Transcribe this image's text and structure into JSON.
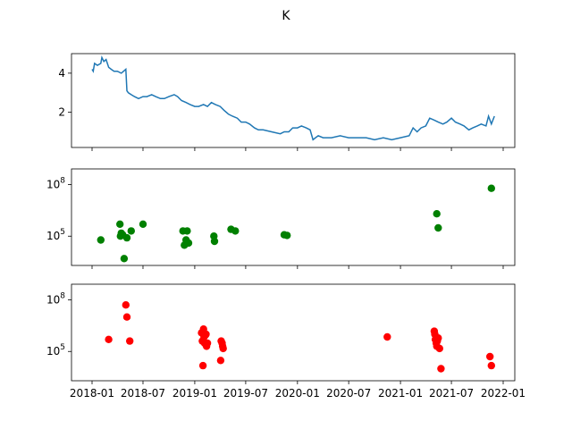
{
  "figure": {
    "title": "K"
  },
  "chart_data": [
    {
      "type": "line",
      "panel": "top",
      "title": "K",
      "xlabel": "",
      "ylabel": "",
      "x_type": "date",
      "xlim": [
        "2018-01-01",
        "2022-01-01"
      ],
      "ylim": [
        0.2,
        5.0
      ],
      "yticks": [
        2,
        4
      ],
      "color": "#1f77b4",
      "series": [
        {
          "x": [
            "2018-01-01",
            "2018-01-05",
            "2018-01-10",
            "2018-01-20",
            "2018-02-01",
            "2018-02-05",
            "2018-02-12",
            "2018-02-20",
            "2018-03-01",
            "2018-03-10",
            "2018-03-20",
            "2018-04-01",
            "2018-04-15",
            "2018-05-01",
            "2018-05-05",
            "2018-05-10",
            "2018-05-20",
            "2018-06-01",
            "2018-06-15",
            "2018-07-01",
            "2018-07-15",
            "2018-08-01",
            "2018-08-15",
            "2018-09-01",
            "2018-09-15",
            "2018-10-01",
            "2018-10-20",
            "2018-11-01",
            "2018-11-15",
            "2018-12-01",
            "2018-12-15",
            "2019-01-01",
            "2019-01-15",
            "2019-02-01",
            "2019-02-15",
            "2019-03-01",
            "2019-03-15",
            "2019-04-01",
            "2019-04-15",
            "2019-05-01",
            "2019-05-15",
            "2019-06-01",
            "2019-06-15",
            "2019-07-01",
            "2019-07-15",
            "2019-08-01",
            "2019-08-15",
            "2019-09-01",
            "2019-10-01",
            "2019-11-01",
            "2019-11-15",
            "2019-12-01",
            "2019-12-15",
            "2020-01-01",
            "2020-01-15",
            "2020-02-01",
            "2020-02-15",
            "2020-02-25",
            "2020-03-05",
            "2020-03-15",
            "2020-04-01",
            "2020-05-01",
            "2020-06-01",
            "2020-07-01",
            "2020-08-01",
            "2020-09-01",
            "2020-10-01",
            "2020-11-01",
            "2020-12-01",
            "2021-01-01",
            "2021-02-01",
            "2021-02-15",
            "2021-03-01",
            "2021-03-15",
            "2021-04-01",
            "2021-04-15",
            "2021-05-01",
            "2021-05-15",
            "2021-06-01",
            "2021-06-15",
            "2021-07-01",
            "2021-07-15",
            "2021-08-01",
            "2021-08-15",
            "2021-09-01",
            "2021-09-15",
            "2021-10-01",
            "2021-10-15",
            "2021-11-01",
            "2021-11-10",
            "2021-11-20",
            "2021-12-01"
          ],
          "y": [
            4.2,
            4.1,
            4.5,
            4.4,
            4.5,
            4.8,
            4.6,
            4.7,
            4.3,
            4.2,
            4.1,
            4.1,
            4.0,
            4.2,
            3.1,
            3.0,
            2.9,
            2.8,
            2.7,
            2.8,
            2.8,
            2.9,
            2.8,
            2.7,
            2.7,
            2.8,
            2.9,
            2.8,
            2.6,
            2.5,
            2.4,
            2.3,
            2.3,
            2.4,
            2.3,
            2.5,
            2.4,
            2.3,
            2.1,
            1.9,
            1.8,
            1.7,
            1.5,
            1.5,
            1.4,
            1.2,
            1.1,
            1.1,
            1.0,
            0.9,
            1.0,
            1.0,
            1.2,
            1.2,
            1.3,
            1.2,
            1.1,
            0.6,
            0.7,
            0.8,
            0.7,
            0.7,
            0.8,
            0.7,
            0.7,
            0.7,
            0.6,
            0.7,
            0.6,
            0.7,
            0.8,
            1.2,
            1.0,
            1.2,
            1.3,
            1.7,
            1.6,
            1.5,
            1.4,
            1.5,
            1.7,
            1.5,
            1.4,
            1.3,
            1.1,
            1.2,
            1.3,
            1.4,
            1.3,
            1.8,
            1.4,
            1.8
          ]
        }
      ]
    },
    {
      "type": "scatter",
      "panel": "middle",
      "title": "",
      "xlabel": "",
      "ylabel": "",
      "y_scale": "log",
      "x_type": "date",
      "xlim": [
        "2018-01-01",
        "2022-01-01"
      ],
      "ylim": [
        2000,
        800000000
      ],
      "ytick_labels": [
        {
          "base": "10",
          "exp": "5",
          "value": 100000
        },
        {
          "base": "10",
          "exp": "8",
          "value": 100000000
        }
      ],
      "color": "#008000",
      "series": [
        {
          "x": [
            "2018-02-01",
            "2018-04-10",
            "2018-04-12",
            "2018-04-15",
            "2018-04-20",
            "2018-04-25",
            "2018-05-05",
            "2018-05-20",
            "2018-07-01",
            "2018-11-20",
            "2018-11-25",
            "2018-12-01",
            "2018-12-05",
            "2018-12-10",
            "2019-03-10",
            "2019-03-12",
            "2019-05-10",
            "2019-05-25",
            "2019-11-15",
            "2019-11-25",
            "2021-05-10",
            "2021-05-15",
            "2021-11-20"
          ],
          "y": [
            60000,
            500000,
            100000,
            150000,
            120000,
            5000,
            80000,
            200000,
            500000,
            200000,
            30000,
            60000,
            200000,
            40000,
            100000,
            50000,
            250000,
            200000,
            120000,
            110000,
            2000000,
            300000,
            60000000
          ]
        }
      ]
    },
    {
      "type": "scatter",
      "panel": "bottom",
      "title": "",
      "xlabel": "",
      "ylabel": "",
      "y_scale": "log",
      "x_type": "date",
      "xlim": [
        "2018-01-01",
        "2022-01-01"
      ],
      "ylim": [
        2000,
        800000000
      ],
      "ytick_labels": [
        {
          "base": "10",
          "exp": "5",
          "value": 100000
        },
        {
          "base": "10",
          "exp": "8",
          "value": 100000000
        }
      ],
      "xticks": [
        "2018-01",
        "2018-07",
        "2019-01",
        "2019-07",
        "2020-01",
        "2020-07",
        "2021-01",
        "2021-07",
        "2022-01"
      ],
      "color": "#ff0000",
      "series": [
        {
          "x": [
            "2018-03-01",
            "2018-05-01",
            "2018-05-05",
            "2018-05-15",
            "2019-01-25",
            "2019-01-28",
            "2019-02-01",
            "2019-02-03",
            "2019-02-05",
            "2019-02-08",
            "2019-02-10",
            "2019-02-12",
            "2019-02-15",
            "2019-01-30",
            "2019-04-05",
            "2019-04-08",
            "2019-04-10",
            "2019-04-12",
            "2019-04-03",
            "2020-11-15",
            "2021-05-01",
            "2021-05-03",
            "2021-05-05",
            "2021-05-08",
            "2021-05-10",
            "2021-05-12",
            "2021-05-15",
            "2021-05-20",
            "2021-05-25",
            "2021-11-15",
            "2021-11-20"
          ],
          "y": [
            500000,
            50000000,
            10000000,
            400000,
            1200000,
            400000,
            2000000,
            700000,
            300000,
            900000,
            1000000,
            200000,
            300000,
            15000,
            400000,
            300000,
            200000,
            150000,
            30000,
            700000,
            1500000,
            1000000,
            500000,
            300000,
            200000,
            400000,
            600000,
            150000,
            10000,
            50000,
            15000
          ]
        }
      ]
    }
  ]
}
